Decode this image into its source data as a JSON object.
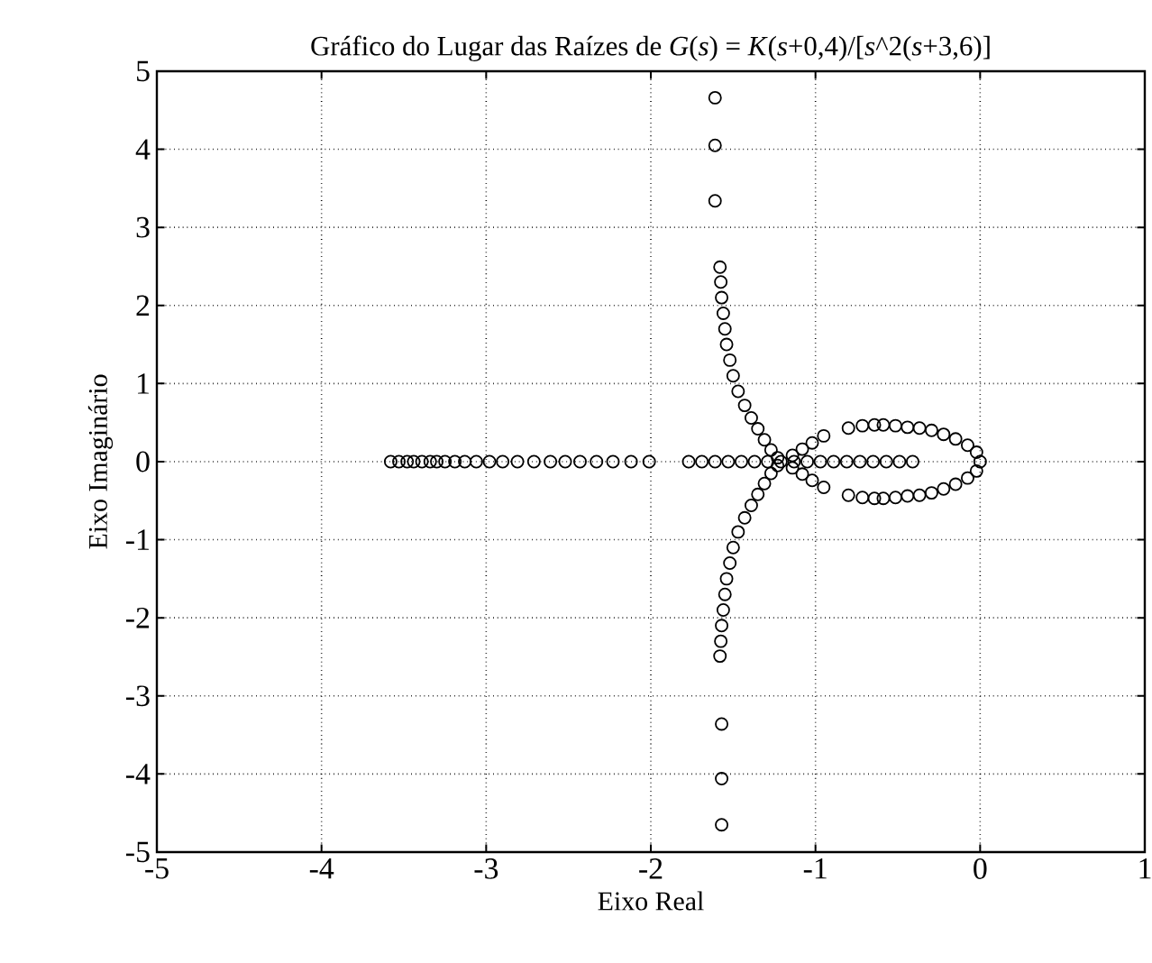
{
  "chart_data": {
    "type": "scatter",
    "title": "Gráfico do Lugar das Raízes de *G*(*s*) = *K*(*s*+0,4)/[*s*^2(*s*+3,6)]",
    "xlabel": "Eixo Real",
    "ylabel": "Eixo Imaginário",
    "xlim": [
      -5,
      1
    ],
    "ylim": [
      -5,
      5
    ],
    "xticks": [
      -5,
      -4,
      -3,
      -2,
      -1,
      0,
      1
    ],
    "yticks": [
      -5,
      -4,
      -3,
      -2,
      -1,
      0,
      1,
      2,
      3,
      4,
      5
    ],
    "grid": true,
    "marker": "circle",
    "series": [
      {
        "color": "#000000",
        "x": [
          -1.61,
          -1.61,
          -1.61,
          -1.57,
          -1.57,
          -1.57,
          -1.58,
          -1.575,
          -1.57,
          -1.56,
          -1.55,
          -1.54,
          -1.52,
          -1.5,
          -1.47,
          -1.43,
          -1.39,
          -1.35,
          -1.31,
          -1.27,
          -1.23,
          -1.58,
          -1.575,
          -1.57,
          -1.56,
          -1.55,
          -1.54,
          -1.52,
          -1.5,
          -1.47,
          -1.43,
          -1.39,
          -1.35,
          -1.31,
          -1.27,
          -1.23,
          -1.77,
          -1.69,
          -1.61,
          -1.53,
          -1.45,
          -1.37,
          -1.29,
          -1.21,
          -1.13,
          -1.05,
          -0.97,
          -0.89,
          -0.81,
          -0.73,
          -0.65,
          -0.57,
          -0.49,
          -0.41,
          -1.14,
          -1.08,
          -1.02,
          -0.95,
          -1.14,
          -1.08,
          -1.02,
          -0.95,
          -0.8,
          -0.715,
          -0.642,
          -0.588,
          -0.514,
          -0.441,
          -0.368,
          -0.295,
          -0.222,
          -0.149,
          -0.076,
          -0.022,
          0.0,
          -0.8,
          -0.715,
          -0.642,
          -0.588,
          -0.514,
          -0.441,
          -0.368,
          -0.295,
          -0.222,
          -0.149,
          -0.076,
          -0.022,
          -3.58,
          -3.53,
          -3.48,
          -3.44,
          -3.39,
          -3.34,
          -3.3,
          -3.25,
          -3.19,
          -3.13,
          -3.06,
          -2.98,
          -2.9,
          -2.81,
          -2.71,
          -2.61,
          -2.52,
          -2.43,
          -2.33,
          -2.23,
          -2.12,
          -2.01
        ],
        "values": [
          4.66,
          4.05,
          3.34,
          -3.36,
          -4.06,
          -4.65,
          2.49,
          2.3,
          2.1,
          1.9,
          1.7,
          1.5,
          1.3,
          1.1,
          0.9,
          0.72,
          0.56,
          0.42,
          0.28,
          0.15,
          0.05,
          -2.49,
          -2.3,
          -2.1,
          -1.9,
          -1.7,
          -1.5,
          -1.3,
          -1.1,
          -0.9,
          -0.72,
          -0.56,
          -0.42,
          -0.28,
          -0.15,
          -0.05,
          0,
          0,
          0,
          0,
          0,
          0,
          0,
          0,
          0,
          0,
          0,
          0,
          0,
          0,
          0,
          0,
          0,
          0,
          0.08,
          0.16,
          0.24,
          0.33,
          -0.08,
          -0.16,
          -0.24,
          -0.33,
          0.43,
          0.46,
          0.47,
          0.47,
          0.46,
          0.44,
          0.43,
          0.4,
          0.35,
          0.29,
          0.21,
          0.12,
          0,
          -0.43,
          -0.46,
          -0.47,
          -0.47,
          -0.46,
          -0.44,
          -0.43,
          -0.4,
          -0.35,
          -0.29,
          -0.21,
          -0.12,
          0,
          0,
          0,
          0,
          0,
          0,
          0,
          0,
          0,
          0,
          0,
          0,
          0,
          0,
          0,
          0,
          0,
          0,
          0,
          0,
          0,
          0
        ]
      }
    ]
  }
}
